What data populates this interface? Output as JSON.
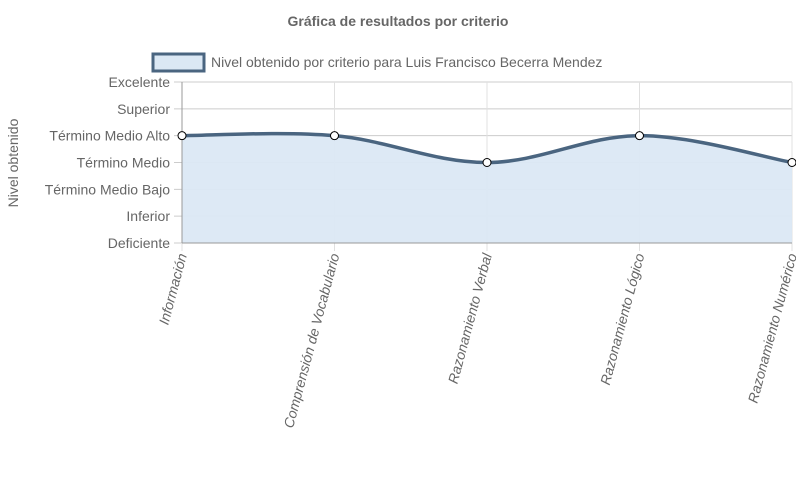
{
  "chart_data": {
    "type": "area",
    "title": "Gráfica de resultados por criterio",
    "ylabel": "Nivel obtenido",
    "xlabel": "",
    "categories": [
      "Información",
      "Comprensión de Vocabulario",
      "Razonamiento Verbal",
      "Razonamiento Lógico",
      "Razonamiento Numérico"
    ],
    "y_levels": [
      "Deficiente",
      "Inferior",
      "Término Medio Bajo",
      "Término Medio",
      "Término Medio Alto",
      "Superior",
      "Excelente"
    ],
    "series": [
      {
        "name": "Nivel obtenido por criterio para Luis Francisco Becerra Mendez",
        "values": [
          4,
          4,
          3,
          4,
          3
        ]
      }
    ],
    "ylim": [
      0,
      6
    ],
    "grid": true,
    "legend_position": "top",
    "colors": {
      "line": "#4a6580",
      "fill": "#dbe8f4",
      "grid": "#cccccc",
      "axis": "#999999",
      "point_fill": "#ffffff",
      "point_stroke": "#000000"
    }
  }
}
